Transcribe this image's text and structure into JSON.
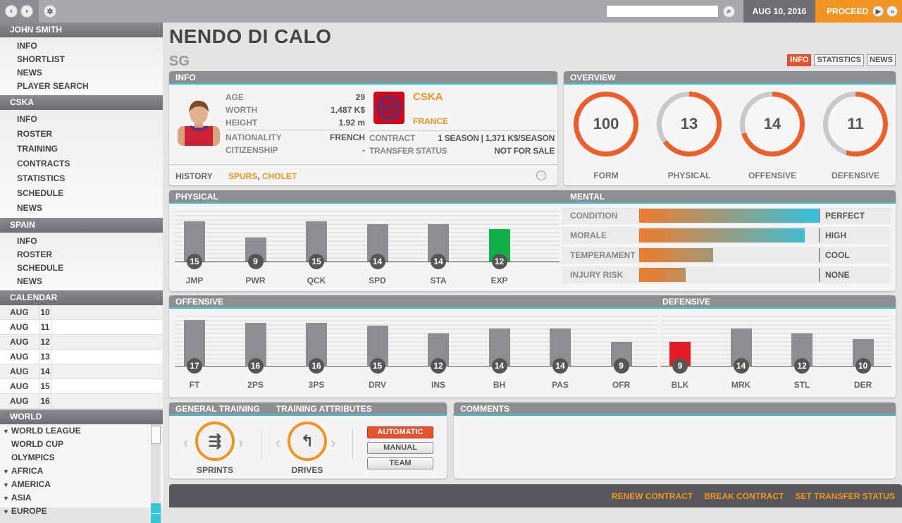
{
  "topbar": {
    "date": "AUG 10, 2016",
    "proceed": "PROCEED",
    "search_placeholder": ""
  },
  "sidebar": {
    "sections": [
      {
        "title": "JOHN SMITH",
        "items": [
          "INFO",
          "SHORTLIST",
          "NEWS",
          "PLAYER SEARCH"
        ]
      },
      {
        "title": "CSKA",
        "items": [
          "INFO",
          "ROSTER",
          "TRAINING",
          "CONTRACTS",
          "STATISTICS",
          "SCHEDULE",
          "NEWS"
        ]
      },
      {
        "title": "SPAIN",
        "items": [
          "INFO",
          "ROSTER",
          "SCHEDULE",
          "NEWS"
        ]
      }
    ],
    "calendar_title": "CALENDAR",
    "calendar": [
      [
        "AUG",
        "10"
      ],
      [
        "AUG",
        "11"
      ],
      [
        "AUG",
        "12"
      ],
      [
        "AUG",
        "13"
      ],
      [
        "AUG",
        "14"
      ],
      [
        "AUG",
        "15"
      ],
      [
        "AUG",
        "16"
      ]
    ],
    "world_title": "WORLD",
    "world": [
      {
        "label": "WORLD LEAGUE",
        "expand": true
      },
      {
        "label": "WORLD CUP",
        "expand": false
      },
      {
        "label": "OLYMPICS",
        "expand": false
      },
      {
        "label": "AFRICA",
        "expand": true
      },
      {
        "label": "AMERICA",
        "expand": true
      },
      {
        "label": "ASIA",
        "expand": true
      },
      {
        "label": "EUROPE",
        "expand": true
      }
    ]
  },
  "player": {
    "name": "NENDO DI CALO",
    "position": "SG"
  },
  "tabs": [
    "INFO",
    "STATISTICS",
    "NEWS"
  ],
  "info": {
    "title": "INFO",
    "age_label": "AGE",
    "age": "29",
    "worth_label": "WORTH",
    "worth": "1,487 K$",
    "height_label": "HEIGHT",
    "height": "1.92 m",
    "nationality_label": "NATIONALITY",
    "nationality": "FRENCH",
    "citizenship_label": "CITIZENSHIP",
    "citizenship": "-",
    "club": "CSKA",
    "country": "FRANCE",
    "contract_label": "CONTRACT",
    "contract": "1 SEASON | 1,371 K$/SEASON",
    "transfer_label": "TRANSFER STATUS",
    "transfer": "NOT FOR SALE",
    "history_label": "HISTORY",
    "history": [
      "SPURS",
      "CHOLET"
    ],
    "history_sep": ","
  },
  "overview": {
    "title": "OVERVIEW",
    "items": [
      {
        "label": "FORM",
        "value": 100
      },
      {
        "label": "PHYSICAL",
        "value": 13
      },
      {
        "label": "OFFENSIVE",
        "value": 14
      },
      {
        "label": "DEFENSIVE",
        "value": 11
      }
    ]
  },
  "physical": {
    "title": "PHYSICAL",
    "attrs": [
      {
        "k": "JMP",
        "v": 15
      },
      {
        "k": "PWR",
        "v": 9
      },
      {
        "k": "QCK",
        "v": 15
      },
      {
        "k": "SPD",
        "v": 14
      },
      {
        "k": "STA",
        "v": 14
      },
      {
        "k": "EXP",
        "v": 12,
        "hl": "#10b048"
      }
    ]
  },
  "mental": {
    "title": "MENTAL",
    "rows": [
      {
        "label": "CONDITION",
        "pct": 100,
        "value": "PERFECT"
      },
      {
        "label": "MORALE",
        "pct": 92,
        "value": "HIGH"
      },
      {
        "label": "TEMPERAMENT",
        "pct": 41,
        "value": "COOL"
      },
      {
        "label": "INJURY RISK",
        "pct": 26,
        "value": "NONE"
      }
    ]
  },
  "offensive": {
    "title": "OFFENSIVE",
    "attrs": [
      {
        "k": "FT",
        "v": 17
      },
      {
        "k": "2PS",
        "v": 16
      },
      {
        "k": "3PS",
        "v": 16
      },
      {
        "k": "DRV",
        "v": 15
      },
      {
        "k": "INS",
        "v": 12
      },
      {
        "k": "BH",
        "v": 14
      },
      {
        "k": "PAS",
        "v": 14
      },
      {
        "k": "OFR",
        "v": 9
      }
    ]
  },
  "defensive": {
    "title": "DEFENSIVE",
    "attrs": [
      {
        "k": "BLK",
        "v": 9,
        "hl": "#e31b23"
      },
      {
        "k": "MRK",
        "v": 14
      },
      {
        "k": "STL",
        "v": 12
      },
      {
        "k": "DER",
        "v": 10
      }
    ]
  },
  "training": {
    "general_title": "GENERAL TRAINING",
    "attr_title": "TRAINING ATTRIBUTES",
    "general": "SPRINTS",
    "attribute": "DRIVES",
    "modes": [
      "AUTOMATIC",
      "MANUAL",
      "TEAM"
    ],
    "selected_mode": "AUTOMATIC"
  },
  "comments": {
    "title": "COMMENTS"
  },
  "footer": {
    "renew": "RENEW CONTRACT",
    "break": "BREAK CONTRACT",
    "transfer": "SET TRANSFER STATUS"
  },
  "colors": {
    "accent": "#f29420",
    "cyan": "#34c6d5",
    "selected": "#e8542a"
  }
}
